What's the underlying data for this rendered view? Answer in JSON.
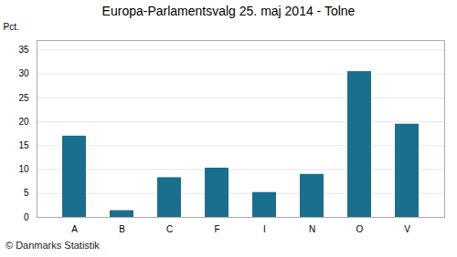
{
  "chart_data": {
    "type": "bar",
    "title": "Europa-Parlamentsvalg 25. maj 2014 - Tolne",
    "categories": [
      "A",
      "B",
      "C",
      "F",
      "I",
      "N",
      "O",
      "V"
    ],
    "values": [
      17.0,
      1.4,
      8.3,
      10.3,
      5.2,
      9.0,
      30.5,
      19.5
    ],
    "color": "#1a6e8e",
    "ylabel": "Pct.",
    "ylim": [
      0,
      37
    ],
    "yticks": [
      0,
      5,
      10,
      15,
      20,
      25,
      30,
      35
    ],
    "grid": true,
    "footer": "© Danmarks Statistik"
  }
}
